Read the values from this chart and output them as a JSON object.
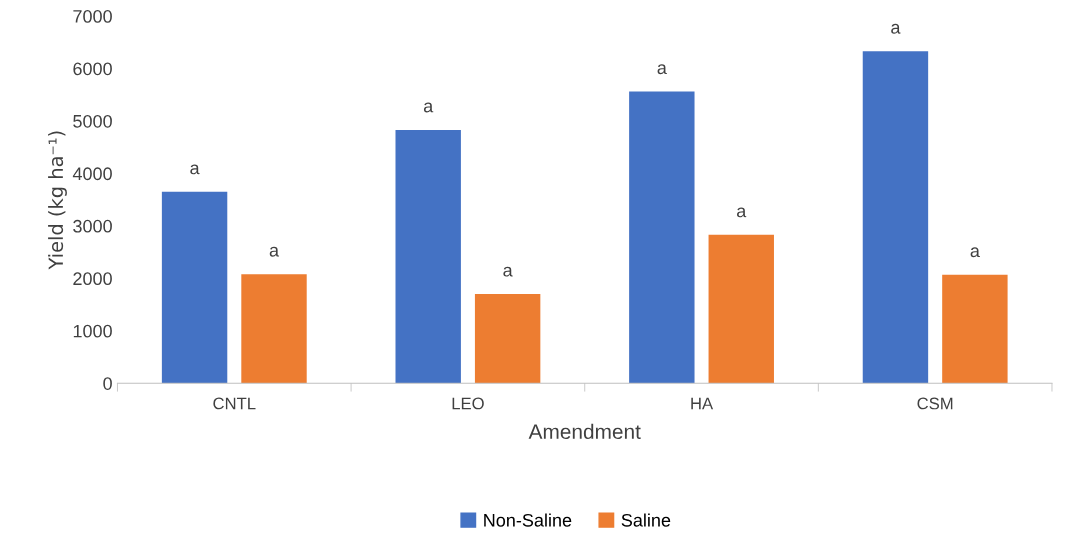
{
  "chart_data": {
    "type": "bar",
    "xlabel": "Amendment",
    "ylabel": "Yield (kg ha⁻¹)",
    "categories": [
      "CNTL",
      "LEO",
      "HA",
      "CSM"
    ],
    "series": [
      {
        "name": "Non-Saline",
        "color": "#4472c4",
        "values": [
          3650,
          4830,
          5560,
          6330
        ]
      },
      {
        "name": "Saline",
        "color": "#ed7d31",
        "values": [
          2080,
          1700,
          2830,
          2070
        ]
      }
    ],
    "ylim": [
      0,
      7000
    ],
    "yticks": [
      0,
      1000,
      2000,
      3000,
      4000,
      5000,
      6000,
      7000
    ],
    "grid": false,
    "legend": "bottom",
    "annotations": [
      "a",
      "a",
      "a",
      "a",
      "a",
      "a",
      "a",
      "a"
    ]
  }
}
